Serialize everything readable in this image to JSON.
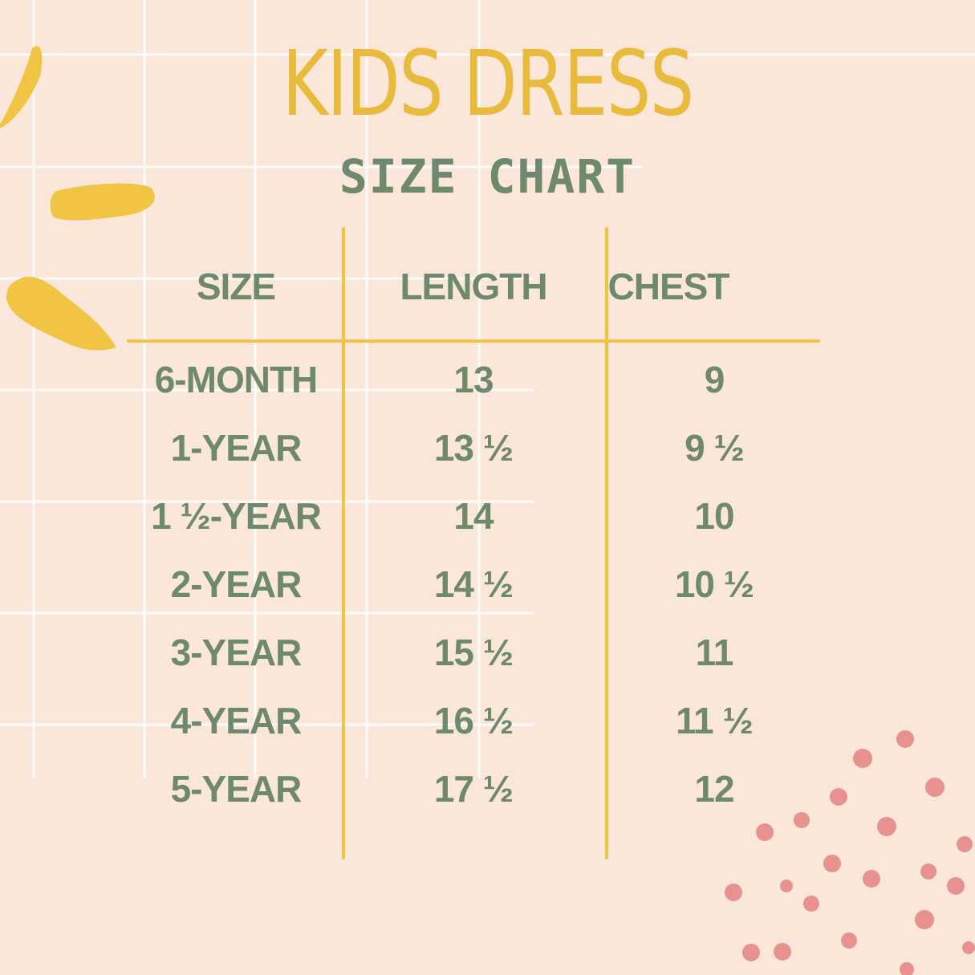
{
  "title": "KIDS DRESS",
  "subtitle": "SIZE CHART",
  "colors": {
    "background": "#fbe7da",
    "accent_yellow": "#f0c443",
    "text_green": "#6f896c",
    "dots_pink": "#e8928f",
    "grid": "#ffffff"
  },
  "table": {
    "headers": [
      "SIZE",
      "LENGTH",
      "CHEST"
    ],
    "rows": [
      [
        "6-MONTH",
        "13",
        "9"
      ],
      [
        "1-YEAR",
        "13 ½",
        "9 ½"
      ],
      [
        "1 ½-YEAR",
        "14",
        "10"
      ],
      [
        "2-YEAR",
        "14 ½",
        "10 ½"
      ],
      [
        "3-YEAR",
        "15 ½",
        "11"
      ],
      [
        "4-YEAR",
        "16 ½",
        "11 ½"
      ],
      [
        "5-YEAR",
        "17 ½",
        "12"
      ]
    ]
  }
}
